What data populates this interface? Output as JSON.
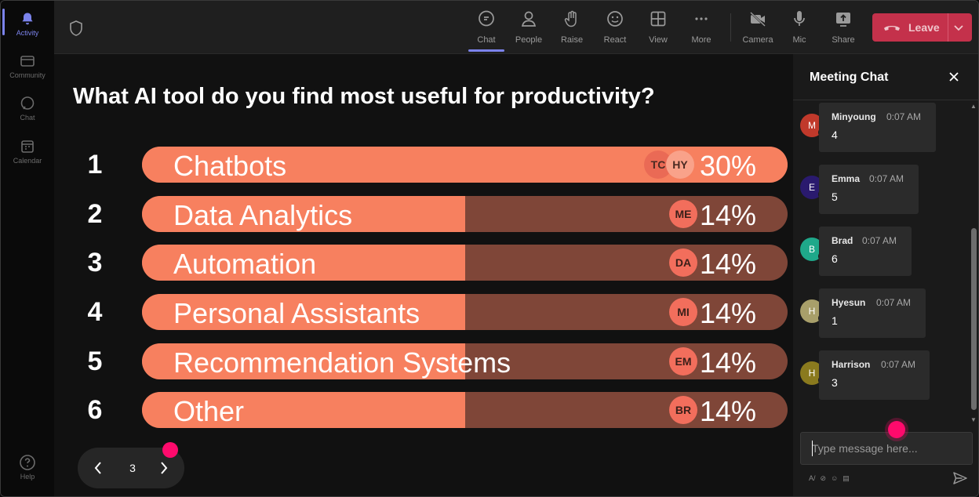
{
  "rail": {
    "items": [
      {
        "label": "Activity",
        "icon": "bell-icon"
      },
      {
        "label": "Community",
        "icon": "community-icon"
      },
      {
        "label": "Chat",
        "icon": "chat-icon"
      },
      {
        "label": "Calendar",
        "icon": "calendar-icon"
      },
      {
        "label": "Help",
        "icon": "help-icon"
      }
    ]
  },
  "toolbar": {
    "chat": "Chat",
    "people": "People",
    "raise": "Raise",
    "react": "React",
    "view": "View",
    "more": "More",
    "camera": "Camera",
    "mic": "Mic",
    "share": "Share",
    "leave": "Leave"
  },
  "poll": {
    "question": "What AI tool do you find most useful for productivity?",
    "options": [
      {
        "num": "1",
        "label": "Chatbots",
        "pct": "30%",
        "fill": 1.0,
        "voters": [
          "TC",
          "HY"
        ]
      },
      {
        "num": "2",
        "label": "Data Analytics",
        "pct": "14%",
        "fill": 0.5,
        "voters": [
          "ME"
        ]
      },
      {
        "num": "3",
        "label": "Automation",
        "pct": "14%",
        "fill": 0.5,
        "voters": [
          "DA"
        ]
      },
      {
        "num": "4",
        "label": "Personal Assistants",
        "pct": "14%",
        "fill": 0.5,
        "voters": [
          "MI"
        ]
      },
      {
        "num": "5",
        "label": "Recommendation Systems",
        "pct": "14%",
        "fill": 0.5,
        "voters": [
          "EM"
        ]
      },
      {
        "num": "6",
        "label": "Other",
        "pct": "14%",
        "fill": 0.5,
        "voters": [
          "BR"
        ]
      }
    ],
    "page": "3"
  },
  "chat": {
    "title": "Meeting Chat",
    "messages": [
      {
        "initial": "M",
        "sender": "Minyoung",
        "time": "0:07 AM",
        "body": "4",
        "color": "#c0392b"
      },
      {
        "initial": "E",
        "sender": "Emma",
        "time": "0:07 AM",
        "body": "5",
        "color": "#2a1a6e"
      },
      {
        "initial": "B",
        "sender": "Brad",
        "time": "0:07 AM",
        "body": "6",
        "color": "#1fa88a"
      },
      {
        "initial": "H",
        "sender": "Hyesun",
        "time": "0:07 AM",
        "body": "1",
        "color": "#a89f6a"
      },
      {
        "initial": "H",
        "sender": "Harrison",
        "time": "0:07 AM",
        "body": "3",
        "color": "#8a7a1e"
      }
    ],
    "compose_placeholder": "Type message here..."
  },
  "colors": {
    "bar_fill": "#f7805f",
    "bar_track": "#7f4638",
    "leave": "#c4314b",
    "accent": "#7b83eb"
  }
}
